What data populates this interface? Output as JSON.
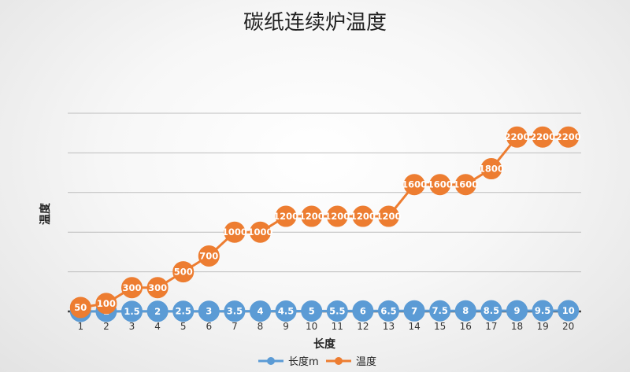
{
  "chart_data": {
    "type": "line",
    "title": "碳纸连续炉温度",
    "xlabel": "长度",
    "ylabel": "温度",
    "categories": [
      "1",
      "2",
      "3",
      "4",
      "5",
      "6",
      "7",
      "8",
      "9",
      "10",
      "11",
      "12",
      "13",
      "14",
      "15",
      "16",
      "17",
      "18",
      "19",
      "20"
    ],
    "ylim": [
      0,
      2500
    ],
    "grid": true,
    "legend_position": "bottom",
    "series": [
      {
        "name": "长度m",
        "color": "#5b9bd5",
        "values": [
          0.5,
          1,
          1.5,
          2,
          2.5,
          3,
          3.5,
          4,
          4.5,
          5,
          5.5,
          6,
          6.5,
          7,
          7.5,
          8,
          8.5,
          9,
          9.5,
          10
        ],
        "labels": [
          "0.5",
          "1",
          "1.5",
          "2",
          "2.5",
          "3",
          "3.5",
          "4",
          "4.5",
          "5",
          "5.5",
          "6",
          "6.5",
          "7",
          "7.5",
          "8",
          "8.5",
          "9",
          "9.5",
          "10"
        ]
      },
      {
        "name": "温度",
        "color": "#ed7d31",
        "values": [
          50,
          100,
          300,
          300,
          500,
          700,
          1000,
          1000,
          1200,
          1200,
          1200,
          1200,
          1200,
          1600,
          1600,
          1600,
          1800,
          2200,
          2200,
          2200
        ],
        "labels": [
          "50",
          "100",
          "300",
          "300",
          "500",
          "700",
          "1000",
          "1000",
          "1200",
          "1200",
          "1200",
          "1200",
          "1200",
          "1600",
          "1600",
          "1600",
          "1800",
          "2200",
          "2200",
          "2200"
        ]
      }
    ]
  }
}
